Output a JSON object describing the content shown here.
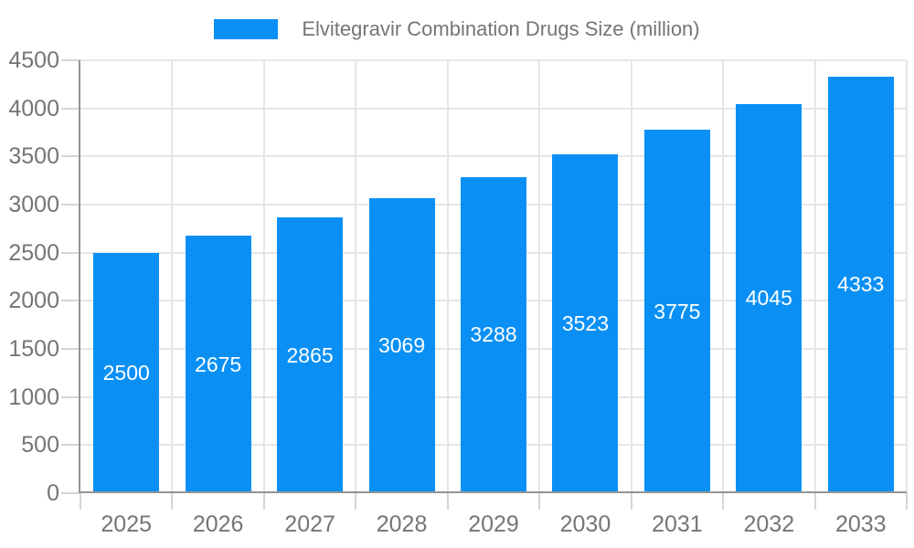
{
  "legend": {
    "label": "Elvitegravir Combination Drugs Size (million)"
  },
  "chart_data": {
    "type": "bar",
    "title": "Elvitegravir Combination Drugs Size (million)",
    "categories": [
      "2025",
      "2026",
      "2027",
      "2028",
      "2029",
      "2030",
      "2031",
      "2032",
      "2033"
    ],
    "series": [
      {
        "name": "Elvitegravir Combination Drugs Size (million)",
        "values": [
          2500,
          2675,
          2865,
          3069,
          3288,
          3523,
          3775,
          4045,
          4333
        ]
      }
    ],
    "bar_value_labels": [
      "2500",
      "2675",
      "2865",
      "3069",
      "3288",
      "3523",
      "3775",
      "4045",
      "4333"
    ],
    "xlabel": "",
    "ylabel": "",
    "ylim": [
      0,
      4500
    ],
    "yticks": [
      0,
      500,
      1000,
      1500,
      2000,
      2500,
      3000,
      3500,
      4000,
      4500
    ],
    "grid": true,
    "legend_position": "top",
    "colors": {
      "bar": "#0a90f5",
      "bar_label": "#ffffff",
      "axis_text": "#757575",
      "legend_text": "#757575",
      "gridline": "#e6e6e6",
      "axis_line": "#949494",
      "tick": "#d5d5d5",
      "background": "#ffffff"
    }
  }
}
